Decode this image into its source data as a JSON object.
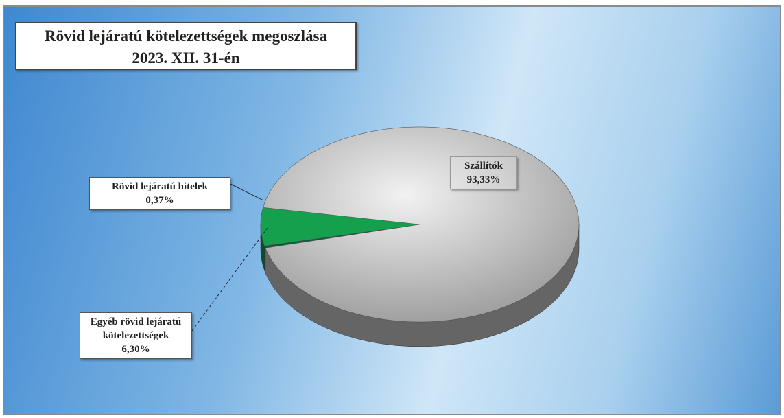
{
  "chart_data": {
    "type": "pie",
    "title": "Rövid lejáratú kötelezettségek megoszlása",
    "subtitle": "2023. XII. 31-én",
    "categories": [
      "Rövid lejáratú hitelek",
      "Egyéb rövid lejáratú kötelezettségek",
      "Szállítók"
    ],
    "values": [
      0.37,
      6.3,
      93.33
    ],
    "value_labels": [
      "0,37%",
      "6,30%",
      "93,33%"
    ],
    "colors": [
      "#0b5a3a",
      "#14a04c",
      "#c9c9c9"
    ]
  }
}
